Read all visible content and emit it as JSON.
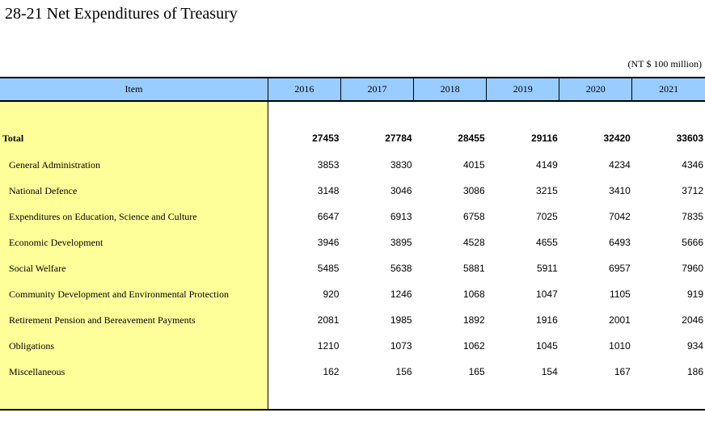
{
  "title": "28-21  Net Expenditures of Treasury",
  "unit": "(NT $ 100 million)",
  "header": {
    "item": "Item",
    "years": [
      "2016",
      "2017",
      "2018",
      "2019",
      "2020",
      "2021"
    ]
  },
  "rows": [
    {
      "label": "Total",
      "values": [
        "27453",
        "27784",
        "28455",
        "29116",
        "32420",
        "33603"
      ]
    },
    {
      "label": "General Administration",
      "values": [
        "3853",
        "3830",
        "4015",
        "4149",
        "4234",
        "4346"
      ]
    },
    {
      "label": "National Defence",
      "values": [
        "3148",
        "3046",
        "3086",
        "3215",
        "3410",
        "3712"
      ]
    },
    {
      "label": "Expenditures on Education, Science and Culture",
      "values": [
        "6647",
        "6913",
        "6758",
        "7025",
        "7042",
        "7835"
      ]
    },
    {
      "label": "Economic Development",
      "values": [
        "3946",
        "3895",
        "4528",
        "4655",
        "6493",
        "5666"
      ]
    },
    {
      "label": "Social Welfare",
      "values": [
        "5485",
        "5638",
        "5881",
        "5911",
        "6957",
        "7960"
      ]
    },
    {
      "label": "Community Development and Environmental Protection",
      "values": [
        "920",
        "1246",
        "1068",
        "1047",
        "1105",
        "919"
      ]
    },
    {
      "label": "Retirement Pension and Bereavement Payments",
      "values": [
        "2081",
        "1985",
        "1892",
        "1916",
        "2001",
        "2046"
      ]
    },
    {
      "label": "Obligations",
      "values": [
        "1210",
        "1073",
        "1062",
        "1045",
        "1010",
        "934"
      ]
    },
    {
      "label": "Miscellaneous",
      "values": [
        "162",
        "156",
        "165",
        "154",
        "167",
        "186"
      ]
    }
  ]
}
